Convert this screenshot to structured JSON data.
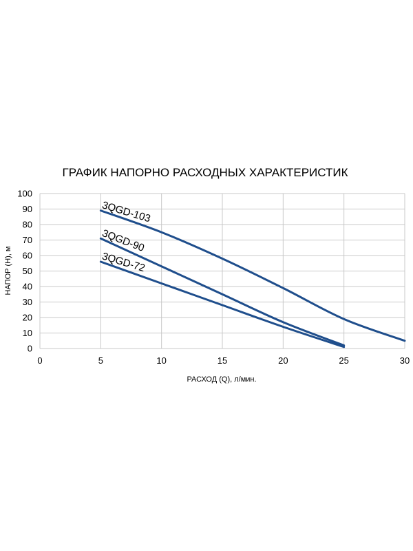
{
  "chart_data": {
    "type": "line",
    "title": "ГРАФИК НАПОРНО РАСХОДНЫХ ХАРАКТЕРИСТИК",
    "xlabel": "РАСХОД (Q), л/мин.",
    "ylabel": "НАПОР (H), м",
    "xlim": [
      0,
      30
    ],
    "ylim": [
      0,
      100
    ],
    "xticks": [
      "0",
      "5",
      "10",
      "15",
      "20",
      "25",
      "30"
    ],
    "yticks": [
      "0",
      "10",
      "20",
      "30",
      "40",
      "50",
      "60",
      "70",
      "80",
      "90",
      "100"
    ],
    "grid": true,
    "legend": "none",
    "line_color": "#1f4e8c",
    "series": [
      {
        "name": "3QGD-103",
        "x": [
          5,
          10,
          15,
          20,
          25,
          30
        ],
        "y": [
          89,
          75,
          58,
          39,
          19,
          5
        ]
      },
      {
        "name": "3QGD-90",
        "x": [
          5,
          10,
          15,
          20,
          25
        ],
        "y": [
          71,
          53,
          35,
          17,
          2
        ]
      },
      {
        "name": "3QGD-72",
        "x": [
          5,
          10,
          15,
          20,
          25
        ],
        "y": [
          56,
          42,
          28,
          14,
          1
        ]
      }
    ]
  }
}
